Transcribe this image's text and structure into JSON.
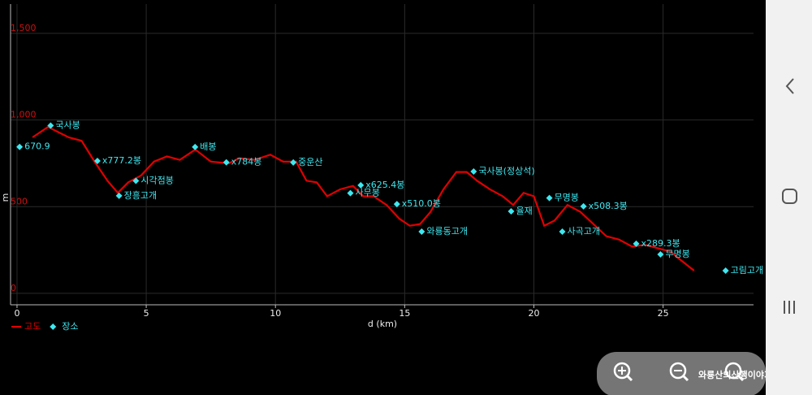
{
  "app_title": "와룡산의산행이야기",
  "chart_data": {
    "type": "line",
    "xlabel": "d (km)",
    "ylabel": "m",
    "xlim": [
      -0.25,
      28.5
    ],
    "ylim": [
      -66,
      1669
    ],
    "xticks": [
      0,
      5,
      10,
      15,
      20,
      25
    ],
    "yticks": [
      0,
      500,
      {
        "value": 1000,
        "label": "1,000"
      },
      {
        "value": 1500,
        "label": "1,500"
      }
    ],
    "grid": true,
    "series": [
      {
        "name": "고도",
        "type": "line",
        "color": "#e00000",
        "x": [
          0.6,
          1.2,
          1.6,
          2.0,
          2.5,
          3.0,
          3.5,
          3.9,
          4.3,
          4.8,
          5.3,
          5.8,
          6.3,
          6.9,
          7.5,
          8.2,
          8.6,
          9.2,
          9.8,
          10.3,
          10.8,
          11.2,
          11.6,
          12.0,
          12.5,
          13.0,
          13.4,
          13.8,
          14.3,
          14.8,
          15.2,
          15.6,
          16.0,
          16.5,
          17.0,
          17.4,
          17.8,
          18.3,
          18.8,
          19.2,
          19.6,
          20.0,
          20.4,
          20.8,
          21.3,
          21.8,
          22.3,
          22.8,
          23.3,
          23.8,
          24.3,
          24.8,
          25.3,
          25.6,
          26.2
        ],
        "values": [
          900,
          960,
          930,
          900,
          880,
          760,
          650,
          580,
          640,
          680,
          760,
          790,
          770,
          830,
          760,
          750,
          780,
          770,
          800,
          760,
          760,
          650,
          640,
          560,
          600,
          620,
          560,
          560,
          510,
          430,
          390,
          400,
          470,
          600,
          700,
          700,
          650,
          600,
          560,
          510,
          580,
          560,
          390,
          420,
          510,
          470,
          400,
          330,
          310,
          270,
          280,
          260,
          240,
          202,
          131
        ]
      },
      {
        "name": "장소",
        "type": "scatter",
        "color": "#3ee8f0",
        "x": [
          0.1,
          1.3,
          3.11,
          3.95,
          4.6,
          6.89,
          8.1,
          10.69,
          12.9,
          13.3,
          14.7,
          15.66,
          17.67,
          19.12,
          20.6,
          21.1,
          21.92,
          23.96,
          24.9,
          27.42
        ],
        "values": [
          845,
          968,
          764,
          563,
          649,
          844,
          756,
          755,
          578,
          624,
          515,
          356,
          703,
          473,
          550,
          356,
          502,
          286,
          225,
          131
        ],
        "labels": [
          "670.9",
          "국사봉",
          "x777.2봉",
          "장흥고개",
          "시각점봉",
          "배봉",
          "x784봉",
          "중운산",
          "사무봉",
          "x625.4봉",
          "x510.0봉",
          "와룡동고개",
          "국사봉(정상석)",
          "율재",
          "무명봉",
          "사곡고개",
          "x508.3봉",
          "x289.3봉",
          "무명봉",
          "고림고개"
        ]
      }
    ],
    "legend": "bottom-left"
  }
}
